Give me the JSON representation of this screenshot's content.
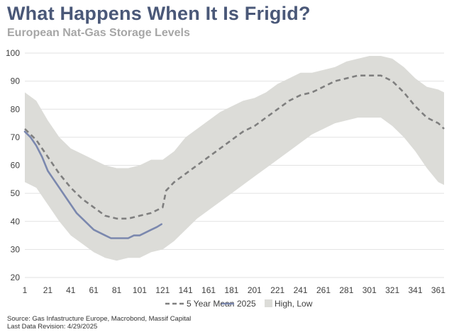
{
  "title": "What Happens When It Is Frigid?",
  "subtitle": "European Nat-Gas Storage Levels",
  "source": "Source: Gas Infastructure Europe, Macrobond, Massif Capital",
  "revision": "Last Data Revision: 4/29/2025",
  "colors": {
    "band": "#dcdcd8",
    "mean": "#7f7f7f",
    "current": "#7b88ae",
    "grid": "#e2e2e2",
    "title": "#4a5878"
  },
  "chart_data": {
    "type": "line",
    "xlim": [
      1,
      366
    ],
    "ylim": [
      20,
      100
    ],
    "x_ticks": [
      1,
      21,
      41,
      61,
      81,
      101,
      121,
      141,
      161,
      181,
      201,
      221,
      241,
      261,
      281,
      301,
      321,
      341,
      361
    ],
    "y_ticks": [
      20,
      30,
      40,
      50,
      60,
      70,
      80,
      90,
      100
    ],
    "grid": "horizontal",
    "legend": "bottom",
    "band": {
      "name": "High, Low",
      "x": [
        1,
        11,
        21,
        31,
        41,
        51,
        61,
        71,
        81,
        91,
        101,
        111,
        121,
        131,
        141,
        151,
        161,
        171,
        181,
        191,
        201,
        211,
        221,
        231,
        241,
        251,
        261,
        271,
        281,
        291,
        301,
        311,
        321,
        331,
        341,
        351,
        361,
        366
      ],
      "high": [
        86,
        83,
        76,
        70,
        66,
        64,
        62,
        60,
        59,
        59,
        60,
        62,
        62,
        65,
        70,
        73,
        76,
        79,
        81,
        83,
        84,
        86,
        89,
        91,
        93,
        93,
        94,
        95,
        97,
        98,
        99,
        99,
        98,
        95,
        91,
        88,
        87,
        86
      ],
      "low": [
        54,
        52,
        46,
        40,
        35,
        32,
        29,
        27,
        26,
        27,
        27,
        29,
        30,
        33,
        37,
        41,
        44,
        47,
        50,
        53,
        56,
        59,
        62,
        65,
        68,
        71,
        73,
        75,
        76,
        77,
        77,
        77,
        74,
        70,
        65,
        59,
        54,
        53
      ]
    },
    "series": [
      {
        "name": "5 Year Mean",
        "style": "dashed",
        "x": [
          1,
          11,
          21,
          31,
          41,
          51,
          61,
          71,
          81,
          91,
          101,
          111,
          121,
          124,
          131,
          141,
          151,
          161,
          171,
          181,
          191,
          201,
          211,
          221,
          231,
          241,
          251,
          261,
          271,
          281,
          291,
          301,
          311,
          321,
          331,
          341,
          351,
          361,
          366
        ],
        "values": [
          73,
          69,
          63,
          57,
          52,
          48,
          45,
          42,
          41,
          41,
          42,
          43,
          45,
          51,
          54,
          57,
          60,
          63,
          66,
          69,
          72,
          74,
          77,
          80,
          83,
          85,
          86,
          88,
          90,
          91,
          92,
          92,
          92,
          90,
          86,
          81,
          77,
          75,
          73
        ]
      },
      {
        "name": "2025",
        "style": "solid",
        "x": [
          1,
          6,
          11,
          16,
          21,
          26,
          31,
          36,
          41,
          46,
          51,
          56,
          61,
          66,
          71,
          76,
          81,
          86,
          91,
          96,
          101,
          106,
          111,
          116,
          120
        ],
        "values": [
          72,
          70,
          67,
          63,
          58,
          55,
          52,
          49,
          46,
          43,
          41,
          39,
          37,
          36,
          35,
          34,
          34,
          34,
          34,
          35,
          35,
          36,
          37,
          38,
          39
        ]
      }
    ]
  }
}
